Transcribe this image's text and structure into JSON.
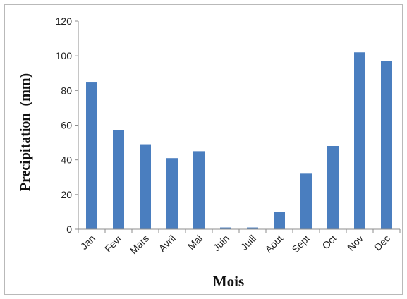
{
  "chart_data": {
    "type": "bar",
    "title": "",
    "xlabel": "Mois",
    "ylabel": "Precipitation  (mm)",
    "categories": [
      "Jan",
      "Fevr",
      "Mars",
      "Avril",
      "Mai",
      "Juin",
      "Juill",
      "Aout",
      "Sept",
      "Oct",
      "Nov",
      "Dec"
    ],
    "values": [
      85,
      57,
      49,
      41,
      45,
      1,
      1,
      10,
      32,
      48,
      102,
      97
    ],
    "ylim": [
      0,
      120
    ],
    "yticks": [
      "0",
      "20",
      "40",
      "60",
      "80",
      "100",
      "120"
    ],
    "grid": false,
    "legend": "none",
    "bar_color": "#4a7ebf",
    "axis_color": "#8c8c8c"
  }
}
